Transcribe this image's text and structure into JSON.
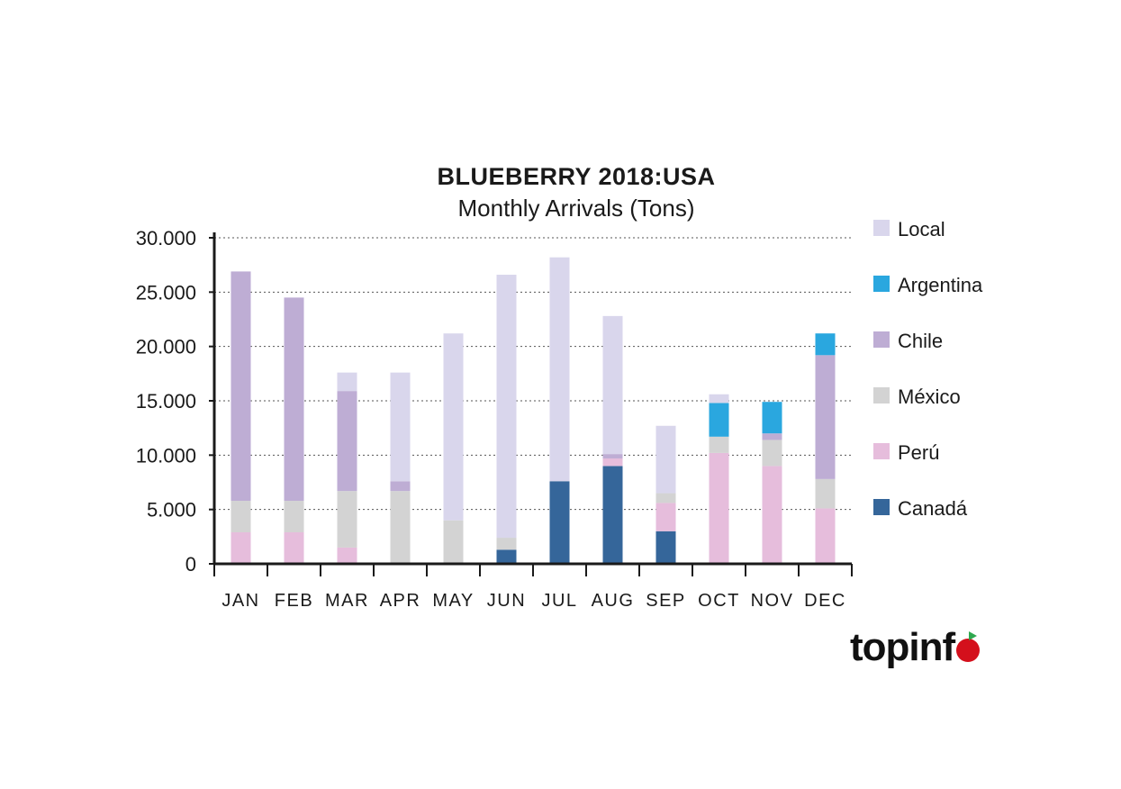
{
  "chart_data": {
    "type": "bar",
    "stacked": true,
    "title": "BLUEBERRY 2018:USA",
    "subtitle": "Monthly Arrivals (Tons)",
    "xlabel": "",
    "ylabel": "",
    "ylim": [
      0,
      30000
    ],
    "yticks": [
      "0",
      "5.000",
      "10.000",
      "15.000",
      "20.000",
      "25.000",
      "30.000"
    ],
    "grid": true,
    "legend_position": "right",
    "categories": [
      "JAN",
      "FEB",
      "MAR",
      "APR",
      "MAY",
      "JUN",
      "JUL",
      "AUG",
      "SEP",
      "OCT",
      "NOV",
      "DEC"
    ],
    "series": [
      {
        "name": "Canadá",
        "color": "#35669a",
        "values": [
          0,
          0,
          0,
          0,
          0,
          1300,
          7600,
          9000,
          3000,
          0,
          0,
          0
        ]
      },
      {
        "name": "Perú",
        "color": "#e6bddc",
        "values": [
          2900,
          2900,
          1500,
          0,
          0,
          0,
          0,
          700,
          2600,
          10200,
          9000,
          5100
        ]
      },
      {
        "name": "México",
        "color": "#d3d3d3",
        "values": [
          2900,
          2900,
          5200,
          6700,
          4000,
          1100,
          0,
          0,
          900,
          1500,
          2400,
          2700
        ]
      },
      {
        "name": "Chile",
        "color": "#beadd4",
        "values": [
          21100,
          18700,
          9200,
          900,
          0,
          0,
          0,
          400,
          0,
          0,
          600,
          11400
        ]
      },
      {
        "name": "Argentina",
        "color": "#2aa7df",
        "values": [
          0,
          0,
          0,
          0,
          0,
          0,
          0,
          0,
          0,
          3100,
          2900,
          2000
        ]
      },
      {
        "name": "Local",
        "color": "#d9d6ec",
        "values": [
          0,
          0,
          1700,
          10000,
          17200,
          24200,
          20600,
          12700,
          6200,
          800,
          0,
          0
        ]
      }
    ],
    "legend_order": [
      "Local",
      "Argentina",
      "Chile",
      "México",
      "Perú",
      "Canadá"
    ]
  },
  "logo": {
    "text": "topinf"
  }
}
